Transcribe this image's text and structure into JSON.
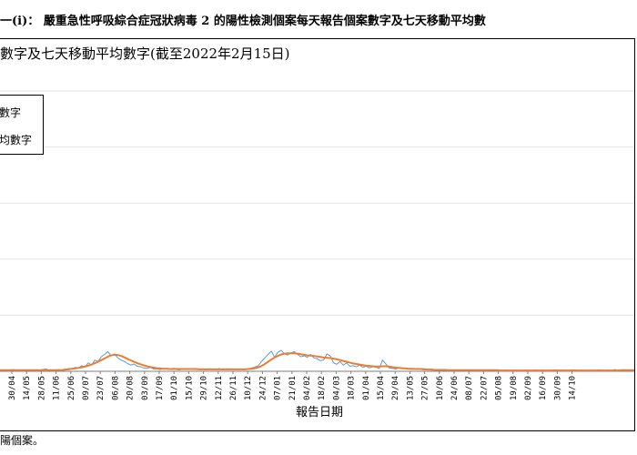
{
  "header": {
    "title": "一(i)： 嚴重急性呼吸綜合症冠狀病毒 2 的陽性檢測個案每天報告個案數字及七天移動平均數"
  },
  "chart_data": {
    "type": "line",
    "title": "數字及七天移動平均數字(截至2022年2月15日)",
    "xlabel": "報告日期",
    "ylabel": "",
    "ylim": [
      0,
      1000
    ],
    "grid": true,
    "legend_position": "top-left",
    "colors": {
      "daily": "#5b9bd5",
      "average": "#ed7d31"
    },
    "legend": [
      "數字",
      "均數字"
    ],
    "tick_labels": [
      "30/04",
      "14/05",
      "28/05",
      "11/06",
      "25/06",
      "09/07",
      "23/07",
      "06/08",
      "20/08",
      "03/09",
      "17/09",
      "01/10",
      "15/10",
      "29/10",
      "12/11",
      "26/11",
      "10/12",
      "24/12",
      "07/01",
      "21/01",
      "04/02",
      "18/02",
      "04/03",
      "18/03",
      "01/04",
      "15/04",
      "29/04",
      "13/05",
      "27/05",
      "10/06",
      "24/06",
      "08/07",
      "22/07",
      "05/08",
      "19/08",
      "02/09",
      "16/09",
      "30/09",
      "14/10"
    ],
    "series": [
      {
        "name": "數字",
        "values": [
          3,
          5,
          2,
          4,
          6,
          3,
          2,
          4,
          3,
          5,
          4,
          2,
          3,
          6,
          8,
          5,
          3,
          4,
          6,
          2,
          5,
          10,
          8,
          14,
          12,
          20,
          16,
          30,
          22,
          40,
          35,
          52,
          60,
          70,
          55,
          62,
          48,
          40,
          35,
          28,
          22,
          26,
          18,
          16,
          12,
          10,
          14,
          8,
          9,
          6,
          10,
          8,
          7,
          11,
          6,
          5,
          9,
          8,
          7,
          10,
          6,
          7,
          8,
          5,
          9,
          7,
          6,
          10,
          5,
          8,
          9,
          6,
          7,
          7,
          6,
          8,
          9,
          12,
          15,
          20,
          35,
          48,
          60,
          72,
          50,
          68,
          75,
          62,
          58,
          66,
          70,
          60,
          52,
          55,
          50,
          60,
          48,
          45,
          38,
          40,
          62,
          55,
          30,
          25,
          35,
          22,
          30,
          18,
          20,
          16,
          22,
          14,
          18,
          12,
          16,
          15,
          10,
          40,
          26,
          12,
          10,
          8,
          12,
          9,
          11,
          8,
          7,
          9,
          10,
          6,
          5,
          7,
          4,
          6,
          5,
          3,
          6,
          4,
          5,
          3,
          4,
          2,
          5,
          3,
          4,
          3,
          2,
          4,
          3,
          2,
          4,
          3,
          5,
          2,
          3,
          4,
          2,
          3,
          4,
          2,
          3,
          4,
          2,
          3,
          5,
          2,
          4,
          3,
          2,
          4,
          5,
          3,
          4,
          3,
          2,
          5,
          4,
          3,
          4,
          2,
          3,
          4,
          3,
          5,
          4,
          3,
          4,
          2,
          6,
          3,
          4,
          5,
          3,
          4,
          5
        ]
      },
      {
        "name": "均數字",
        "values": [
          4,
          4,
          4,
          4,
          4,
          4,
          4,
          4,
          4,
          4,
          4,
          4,
          4,
          4,
          4,
          4,
          4,
          4,
          4,
          4,
          6,
          7,
          9,
          10,
          12,
          14,
          17,
          20,
          24,
          29,
          34,
          40,
          46,
          52,
          57,
          59,
          58,
          55,
          50,
          44,
          39,
          34,
          29,
          25,
          21,
          18,
          15,
          13,
          11,
          10,
          9,
          9,
          8,
          8,
          8,
          8,
          8,
          8,
          8,
          8,
          8,
          7,
          7,
          7,
          7,
          7,
          7,
          7,
          7,
          7,
          7,
          7,
          7,
          7,
          7,
          7,
          8,
          9,
          11,
          14,
          19,
          26,
          34,
          42,
          49,
          55,
          60,
          63,
          64,
          64,
          64,
          63,
          61,
          59,
          57,
          56,
          55,
          53,
          51,
          49,
          48,
          47,
          45,
          43,
          40,
          37,
          34,
          31,
          28,
          26,
          24,
          22,
          20,
          19,
          18,
          17,
          17,
          18,
          18,
          17,
          15,
          13,
          12,
          11,
          10,
          9,
          9,
          8,
          8,
          8,
          7,
          6,
          6,
          5,
          5,
          5,
          5,
          4,
          4,
          4,
          4,
          4,
          4,
          4,
          4,
          4,
          4,
          4,
          4,
          4,
          4,
          4,
          4,
          3,
          3,
          3,
          3,
          3,
          3,
          3,
          3,
          3,
          3,
          3,
          3,
          3,
          3,
          3,
          3,
          3,
          3,
          3,
          3,
          3,
          3,
          3,
          3,
          3,
          3,
          3,
          3,
          3,
          3,
          3,
          3,
          3,
          3,
          3,
          3,
          3,
          4,
          4,
          4,
          4,
          4
        ]
      }
    ]
  },
  "footnote": "陽個案。"
}
